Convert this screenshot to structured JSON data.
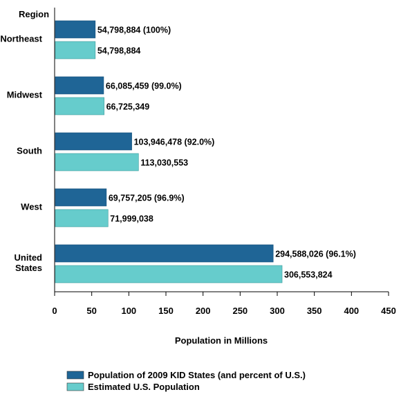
{
  "chart_data": {
    "type": "bar",
    "orientation": "horizontal",
    "title": "",
    "category_axis_label": "Region",
    "xlabel": "Population in Millions",
    "xlim": [
      0,
      450
    ],
    "xticks": [
      "0",
      "50",
      "100",
      "150",
      "200",
      "250",
      "300",
      "350",
      "400",
      "450"
    ],
    "grid": false,
    "legend_position": "bottom",
    "categories": [
      [
        "Northeast"
      ],
      [
        "Midwest"
      ],
      [
        "South"
      ],
      [
        "West"
      ],
      [
        "United",
        "States"
      ]
    ],
    "series": [
      {
        "name": "Population of 2009 KID States (and percent of U.S.)",
        "color": "#1F6596",
        "values": [
          54.798884,
          66.085459,
          103.946478,
          69.757205,
          294.588026
        ],
        "labels": [
          "54,798,884 (100%)",
          "66,085,459 (99.0%)",
          "103,946,478 (92.0%)",
          "69,757,205 (96.9%)",
          "294,588,026 (96.1%)"
        ]
      },
      {
        "name": "Estimated U.S. Population",
        "color": "#66CCCC",
        "values": [
          54.798884,
          66.725349,
          113.030553,
          71.999038,
          306.553824
        ],
        "labels": [
          "54,798,884",
          "66,725,349",
          "113,030,553",
          "71,999,038",
          "306,553,824"
        ]
      }
    ]
  }
}
